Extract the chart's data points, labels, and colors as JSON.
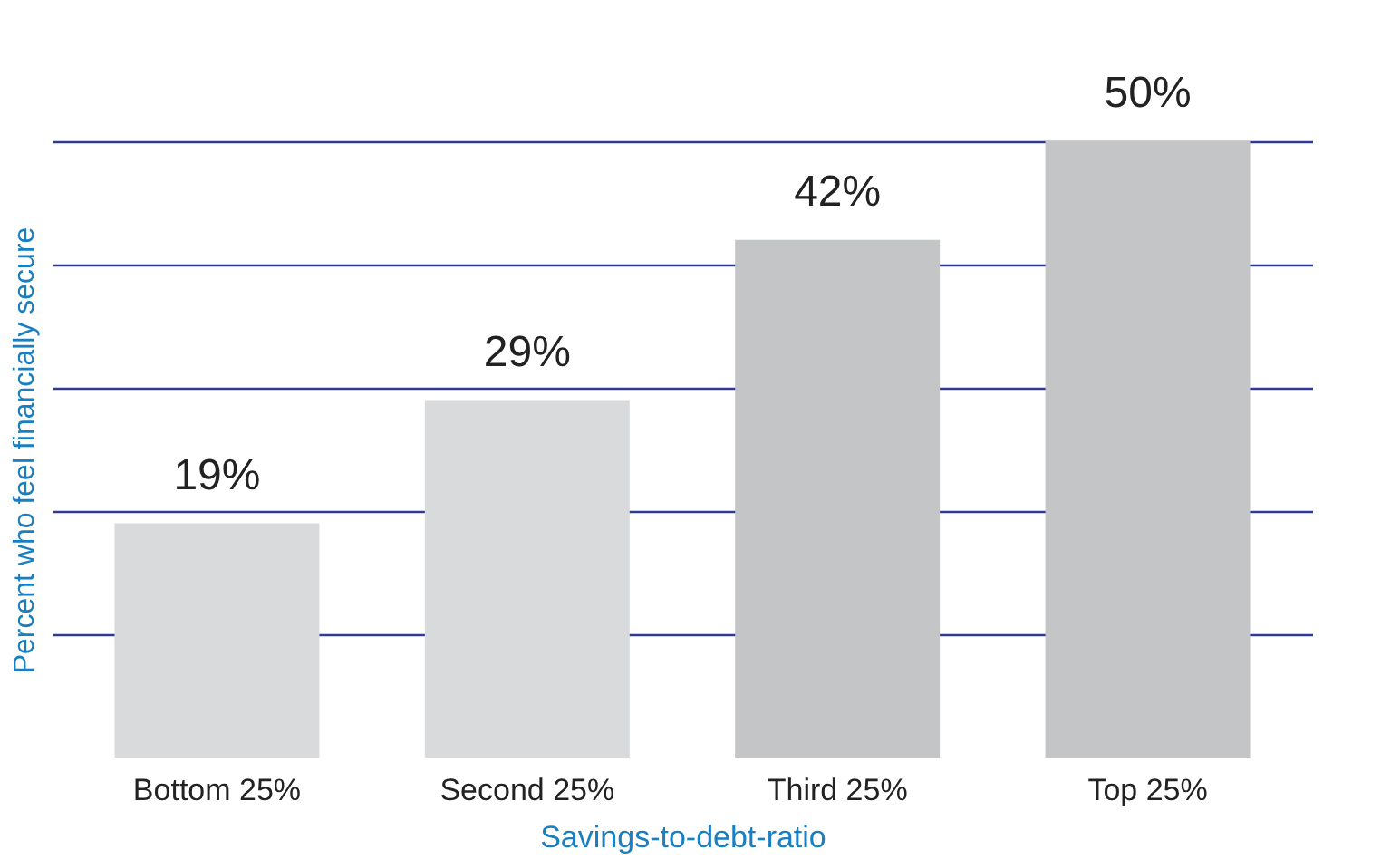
{
  "chart_data": {
    "type": "bar",
    "xlabel": "Savings-to-debt-ratio",
    "ylabel": "Percent who feel financially secure",
    "categories": [
      "Bottom 25%",
      "Second 25%",
      "Third 25%",
      "Top 25%"
    ],
    "values": [
      19,
      29,
      42,
      50
    ],
    "colors": [
      "#d9dadb",
      "#d9dadb",
      "#c4c5c7",
      "#c4c5c7"
    ],
    "value_labels": [
      "19%",
      "29%",
      "42%",
      "50%"
    ],
    "ylim": [
      0,
      50
    ],
    "yticks": [
      {
        "value": 10,
        "label": null
      },
      {
        "value": 20,
        "label": null
      },
      {
        "value": 30,
        "label": null
      },
      {
        "value": 40,
        "label": null
      },
      {
        "value": 50,
        "label": null
      }
    ],
    "grid": "y",
    "tick_labels": "x"
  }
}
